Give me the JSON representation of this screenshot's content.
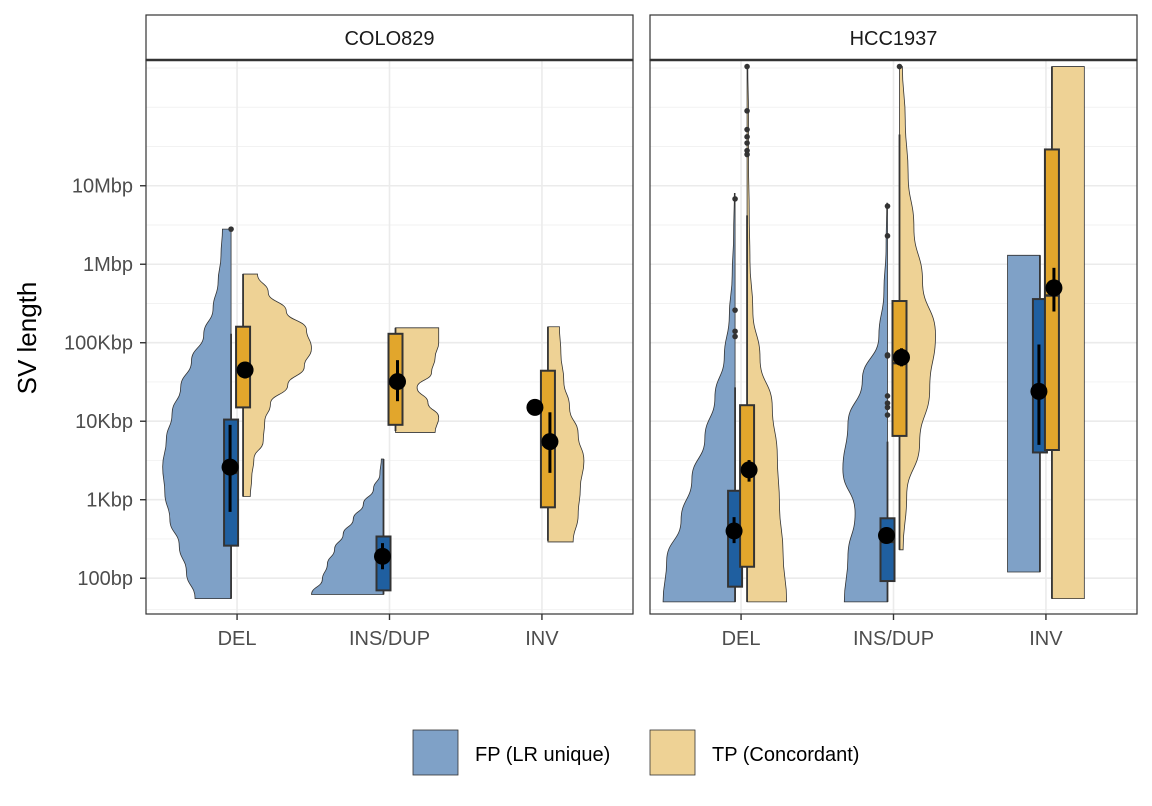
{
  "chart_data": {
    "type": "violin-boxplot",
    "ylabel": "SV length",
    "y_scale": "log10",
    "ylim": [
      35,
      400000000
    ],
    "y_ticks": [
      {
        "value": 100,
        "label": "100bp"
      },
      {
        "value": 1000,
        "label": "1Kbp"
      },
      {
        "value": 10000,
        "label": "10Kbp"
      },
      {
        "value": 100000,
        "label": "100Kbp"
      },
      {
        "value": 1000000,
        "label": "1Mbp"
      },
      {
        "value": 10000000,
        "label": "10Mbp"
      }
    ],
    "categories": [
      "DEL",
      "INS/DUP",
      "INV"
    ],
    "grid": true,
    "legend_position": "bottom",
    "series": [
      {
        "key": "FP",
        "name": "FP (LR unique)",
        "fill": "#1f5fa0",
        "violin_fill": "#7fa1c7"
      },
      {
        "key": "TP",
        "name": "TP (Concordant)",
        "fill": "#e2a62c",
        "violin_fill": "#eed295"
      }
    ],
    "panels": [
      {
        "strip": "COLO829",
        "groups": [
          {
            "category": "DEL",
            "series": "FP",
            "min": 55,
            "q1": 260,
            "median": 2200,
            "q3": 10500,
            "max": 130000,
            "wlo": 55,
            "whi": 130000,
            "mean": 2600,
            "ci": [
              700,
              9000
            ],
            "outliers": [
              2800000
            ],
            "vmin": 55,
            "vmax": 2800000,
            "density": [
              0.5,
              0.62,
              0.72,
              0.85,
              0.92,
              0.95,
              0.9,
              0.82,
              0.7,
              0.55,
              0.38,
              0.25,
              0.18,
              0.14,
              0.12
            ]
          },
          {
            "category": "DEL",
            "series": "TP",
            "min": 1100,
            "q1": 15000,
            "median": 45000,
            "q3": 160000,
            "max": 750000,
            "wlo": 1100,
            "whi": 750000,
            "mean": 45000,
            "ci": [
              35000,
              55000
            ],
            "outliers": [],
            "vmin": 1100,
            "vmax": 750000,
            "density": [
              0.1,
              0.12,
              0.15,
              0.28,
              0.3,
              0.38,
              0.62,
              0.85,
              0.95,
              0.88,
              0.6,
              0.35,
              0.2
            ]
          },
          {
            "category": "INS/DUP",
            "series": "FP",
            "min": 62,
            "q1": 70,
            "median": 190,
            "q3": 340,
            "max": 3300,
            "wlo": 62,
            "whi": 3300,
            "mean": 190,
            "ci": [
              130,
              280
            ],
            "outliers": [],
            "vmin": 62,
            "vmax": 3300,
            "density": [
              1.0,
              0.85,
              0.78,
              0.68,
              0.56,
              0.42,
              0.28,
              0.14,
              0.05,
              0.03
            ]
          },
          {
            "category": "INS/DUP",
            "series": "TP",
            "min": 7500,
            "q1": 9000,
            "median": 30000,
            "q3": 130000,
            "max": 155000,
            "wlo": 7500,
            "whi": 155000,
            "mean": 32000,
            "ci": [
              18000,
              60000
            ],
            "outliers": [],
            "vmin": 7200,
            "vmax": 155000,
            "density": [
              0.55,
              0.6,
              0.45,
              0.3,
              0.5,
              0.55,
              0.6,
              0.6
            ]
          },
          {
            "category": "INV",
            "series": "FP",
            "min": 15000,
            "q1": 15000,
            "median": 15000,
            "q3": 15000,
            "max": 15000,
            "wlo": 15000,
            "whi": 15000,
            "mean": 15000,
            "ci": [
              15000,
              15000
            ],
            "outliers": [],
            "vmin": 15000,
            "vmax": 15000,
            "density": []
          },
          {
            "category": "INV",
            "series": "TP",
            "min": 300,
            "q1": 800,
            "median": 5000,
            "q3": 44000,
            "max": 160000,
            "wlo": 300,
            "whi": 160000,
            "mean": 5500,
            "ci": [
              2200,
              13000
            ],
            "outliers": [],
            "vmin": 290,
            "vmax": 160000,
            "density": [
              0.35,
              0.42,
              0.45,
              0.5,
              0.42,
              0.3,
              0.22,
              0.18,
              0.16
            ]
          }
        ]
      },
      {
        "strip": "HCC1937",
        "groups": [
          {
            "category": "DEL",
            "series": "FP",
            "min": 50,
            "q1": 78,
            "median": 380,
            "q3": 1300,
            "max": 27000,
            "wlo": 50,
            "whi": 27000,
            "mean": 400,
            "ci": [
              280,
              600
            ],
            "outliers": [
              120000,
              140000,
              260000,
              6800000
            ],
            "vmin": 50,
            "vmax": 8000000,
            "density": [
              1.0,
              0.95,
              0.75,
              0.6,
              0.42,
              0.28,
              0.15,
              0.08,
              0.04,
              0.02,
              0.01
            ]
          },
          {
            "category": "DEL",
            "series": "TP",
            "min": 50,
            "q1": 140,
            "median": 2300,
            "q3": 16000,
            "max": 4200000,
            "wlo": 50,
            "whi": 4200000,
            "mean": 2400,
            "ci": [
              1700,
              3200
            ],
            "outliers": [
              25000000,
              28000000,
              35000000,
              42000000,
              52000000,
              90000000,
              330000000
            ],
            "vmin": 50,
            "vmax": 330000000,
            "density": [
              0.55,
              0.5,
              0.45,
              0.42,
              0.35,
              0.18,
              0.08,
              0.04,
              0.03,
              0.02,
              0.02,
              0.01
            ]
          },
          {
            "category": "INS/DUP",
            "series": "FP",
            "min": 50,
            "q1": 92,
            "median": 290,
            "q3": 580,
            "max": 5500,
            "wlo": 50,
            "whi": 5500,
            "mean": 350,
            "ci": [
              300,
              420
            ],
            "outliers": [
              12000,
              15000,
              17000,
              21000,
              68000,
              70000,
              2300000,
              5500000
            ],
            "vmin": 50,
            "vmax": 6000000,
            "density": [
              0.6,
              0.55,
              0.45,
              0.62,
              0.55,
              0.35,
              0.12,
              0.05,
              0.02,
              0.01
            ]
          },
          {
            "category": "INS/DUP",
            "series": "TP",
            "min": 230,
            "q1": 6500,
            "median": 55000,
            "q3": 340000,
            "max": 45000000,
            "wlo": 230,
            "whi": 45000000,
            "mean": 65000,
            "ci": [
              50000,
              85000
            ],
            "outliers": [
              330000000
            ],
            "vmin": 230,
            "vmax": 330000000,
            "density": [
              0.05,
              0.1,
              0.28,
              0.42,
              0.5,
              0.32,
              0.2,
              0.12,
              0.08,
              0.04
            ]
          },
          {
            "category": "INV",
            "series": "FP",
            "min": 120,
            "q1": 4000,
            "median": 22000,
            "q3": 360000,
            "max": 1300000,
            "wlo": 120,
            "whi": 1300000,
            "mean": 24000,
            "ci": [
              5000,
              95000
            ],
            "outliers": [],
            "vmin": 120,
            "vmax": 1300000,
            "density": [
              0.45,
              0.45,
              0.45,
              0.45,
              0.45,
              0.45
            ]
          },
          {
            "category": "INV",
            "series": "TP",
            "min": 55,
            "q1": 4300,
            "median": 400000,
            "q3": 29000000,
            "max": 330000000,
            "wlo": 55,
            "whi": 330000000,
            "mean": 500000,
            "ci": [
              250000,
              900000
            ],
            "outliers": [],
            "vmin": 55,
            "vmax": 330000000,
            "density": [
              0.45,
              0.45,
              0.45,
              0.45,
              0.45,
              0.45,
              0.45
            ]
          }
        ]
      }
    ]
  }
}
